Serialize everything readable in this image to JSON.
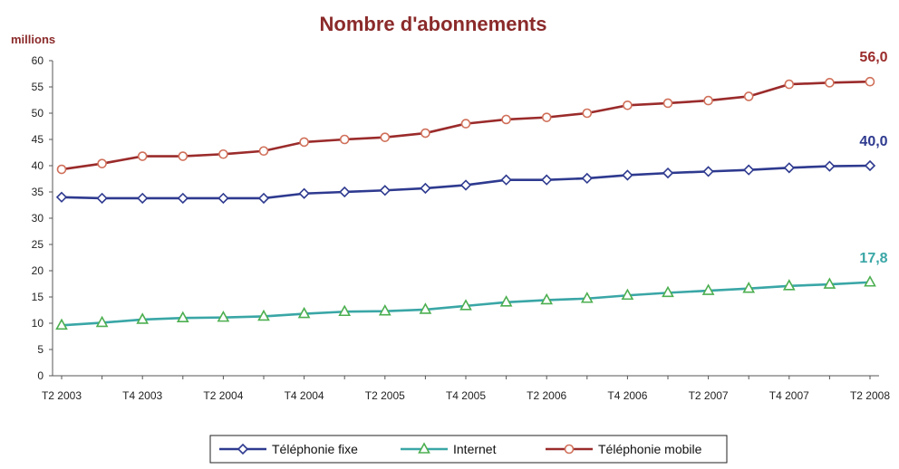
{
  "chart_data": {
    "type": "line",
    "title": "Nombre d'abonnements",
    "ylabel": "millions",
    "xlabel": "",
    "ylim": [
      0,
      60
    ],
    "yticks": [
      0,
      5,
      10,
      15,
      20,
      25,
      30,
      35,
      40,
      45,
      50,
      55,
      60
    ],
    "x": [
      "T2 2003",
      "T3 2003",
      "T4 2003",
      "T1 2004",
      "T2 2004",
      "T3 2004",
      "T4 2004",
      "T1 2005",
      "T2 2005",
      "T3 2005",
      "T4 2005",
      "T1 2006",
      "T2 2006",
      "T3 2006",
      "T4 2006",
      "T1 2007",
      "T2 2007",
      "T3 2007",
      "T4 2007",
      "T1 2008",
      "T2 2008"
    ],
    "xticks": [
      "T2 2003",
      "T4 2003",
      "T2 2004",
      "T4 2004",
      "T2 2005",
      "T4 2005",
      "T2 2006",
      "T4 2006",
      "T2 2007",
      "T4 2007",
      "T2 2008"
    ],
    "series": [
      {
        "name": "Téléphonie fixe",
        "color": "#2e3a8f",
        "marker": "diamond",
        "marker_fill": "#ffffff",
        "values": [
          34.0,
          33.8,
          33.8,
          33.8,
          33.8,
          33.8,
          34.7,
          35.0,
          35.3,
          35.7,
          36.3,
          37.3,
          37.3,
          37.6,
          38.2,
          38.6,
          38.9,
          39.2,
          39.6,
          39.9,
          40.0
        ],
        "end_label": "40,0",
        "end_label_color": "#2e3a8f"
      },
      {
        "name": "Internet",
        "color": "#3aa6a6",
        "marker": "triangle",
        "marker_fill": "#ffffff",
        "marker_stroke": "#4caf50",
        "values": [
          9.6,
          10.1,
          10.7,
          11.0,
          11.1,
          11.3,
          11.8,
          12.2,
          12.3,
          12.6,
          13.3,
          14.0,
          14.4,
          14.7,
          15.3,
          15.8,
          16.2,
          16.6,
          17.1,
          17.4,
          17.8
        ],
        "end_label": "17,8",
        "end_label_color": "#3aa6a6"
      },
      {
        "name": "Téléphonie mobile",
        "color": "#9b2b2b",
        "marker": "circle",
        "marker_fill": "#ffffff",
        "marker_stroke": "#d0705a",
        "values": [
          39.3,
          40.4,
          41.8,
          41.8,
          42.2,
          42.8,
          44.5,
          45.0,
          45.4,
          46.2,
          48.0,
          48.8,
          49.2,
          50.0,
          51.5,
          51.9,
          52.4,
          53.2,
          55.5,
          55.8,
          56.0
        ],
        "end_label": "56,0",
        "end_label_color": "#9b2b2b"
      }
    ],
    "legend": {
      "placement": "bottom"
    },
    "grid": false
  }
}
